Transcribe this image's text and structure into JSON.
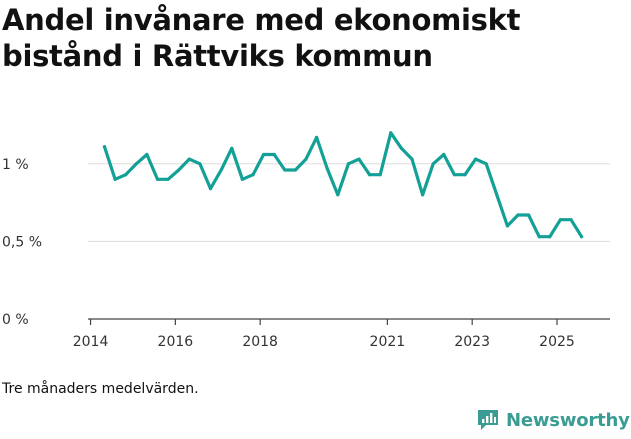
{
  "title": "Andel invånare med ekonomiskt bistånd i Rättviks kommun",
  "footnote": "Tre månaders medelvärden.",
  "brand": {
    "name": "Newsworthy",
    "icon": "bar-chart-logo-icon",
    "color": "#3a9c93"
  },
  "colors": {
    "line": "#13a096",
    "grid": "#dddddd",
    "axis": "#444444"
  },
  "chart_data": {
    "type": "line",
    "title": "Andel invånare med ekonomiskt bistånd i Rättviks kommun",
    "xlabel": "",
    "ylabel": "",
    "x_ticks": [
      {
        "value": 2014,
        "label": "2014"
      },
      {
        "value": 2016,
        "label": "2016"
      },
      {
        "value": 2018,
        "label": "2018"
      },
      {
        "value": 2021,
        "label": "2021"
      },
      {
        "value": 2023,
        "label": "2023"
      },
      {
        "value": 2025,
        "label": "2025"
      }
    ],
    "y_ticks": [
      {
        "value": 0,
        "label": "0 %"
      },
      {
        "value": 0.5,
        "label": "0,5 %"
      },
      {
        "value": 1,
        "label": "1 %"
      }
    ],
    "xlim": [
      2013.94,
      2026.25
    ],
    "ylim": [
      0,
      1.25
    ],
    "grid": true,
    "series": [
      {
        "name": "Andel invånare med ekonomiskt bistånd",
        "x": [
          2014.33,
          2014.58,
          2014.83,
          2015.08,
          2015.33,
          2015.58,
          2015.83,
          2016.08,
          2016.33,
          2016.58,
          2016.83,
          2017.08,
          2017.33,
          2017.58,
          2017.83,
          2018.08,
          2018.33,
          2018.58,
          2018.83,
          2019.08,
          2019.33,
          2019.58,
          2019.83,
          2020.08,
          2020.33,
          2020.58,
          2020.83,
          2021.08,
          2021.33,
          2021.58,
          2021.83,
          2022.08,
          2022.33,
          2022.58,
          2022.83,
          2023.08,
          2023.33,
          2023.58,
          2023.83,
          2024.08,
          2024.33,
          2024.58,
          2024.83,
          2025.08,
          2025.33,
          2025.58
        ],
        "values": [
          1.11,
          0.9,
          0.93,
          1.0,
          1.06,
          0.9,
          0.9,
          0.96,
          1.03,
          1.0,
          0.84,
          0.96,
          1.1,
          0.9,
          0.93,
          1.06,
          1.06,
          0.96,
          0.96,
          1.03,
          1.17,
          0.97,
          0.8,
          1.0,
          1.03,
          0.93,
          0.93,
          1.2,
          1.1,
          1.03,
          0.8,
          1.0,
          1.06,
          0.93,
          0.93,
          1.03,
          1.0,
          0.8,
          0.6,
          0.67,
          0.67,
          0.53,
          0.53,
          0.64,
          0.64,
          0.53
        ]
      }
    ]
  }
}
